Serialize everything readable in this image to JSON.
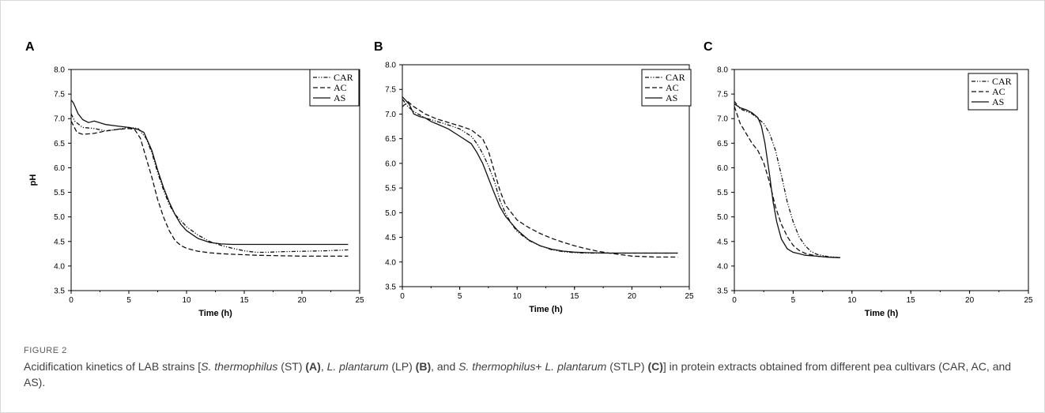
{
  "panels": [
    {
      "letter": "A"
    },
    {
      "letter": "B"
    },
    {
      "letter": "C"
    }
  ],
  "caption": {
    "label": "FIGURE 2",
    "p1": "Acidification kinetics of LAB strains [",
    "i1": "S. thermophilus",
    "p2": " (ST) ",
    "b1": "(A)",
    "p3": ", ",
    "i2": "L. plantarum",
    "p4": " (LP) ",
    "b2": "(B)",
    "p5": ", and ",
    "i3": "S. thermophilus",
    "p6": "+ ",
    "i4": "L. plantarum",
    "p7": " (STLP) ",
    "b3": "(C)",
    "p8": "] in protein extracts obtained from different pea cultivars (CAR, AC, and AS)."
  },
  "chart_data": [
    {
      "panel": "A",
      "type": "line",
      "xlabel": "Time (h)",
      "ylabel": "pH",
      "xlim": [
        0,
        25
      ],
      "ylim": [
        3.5,
        8.0
      ],
      "xticks": [
        0,
        5,
        10,
        15,
        20,
        25
      ],
      "yticks": [
        "3.5",
        "4.0",
        "4.5",
        "5.0",
        "5.5",
        "6.0",
        "6.5",
        "7.0",
        "7.5",
        "8.0"
      ],
      "legend_position": "top-right",
      "series": [
        {
          "name": "CAR",
          "dash": "dashdotdot",
          "x": [
            0,
            0.3,
            1,
            2,
            3,
            4,
            5,
            5.8,
            6.5,
            7,
            7.5,
            8,
            8.5,
            9,
            10,
            11,
            12,
            13,
            14,
            15,
            16,
            17,
            18,
            20,
            22,
            24
          ],
          "y": [
            7.1,
            6.95,
            6.82,
            6.8,
            6.75,
            6.78,
            6.82,
            6.8,
            6.6,
            6.3,
            5.9,
            5.55,
            5.25,
            5.05,
            4.8,
            4.63,
            4.5,
            4.42,
            4.36,
            4.31,
            4.28,
            4.28,
            4.29,
            4.3,
            4.31,
            4.33
          ]
        },
        {
          "name": "AC",
          "dash": "dashed",
          "x": [
            0,
            0.5,
            1,
            2,
            3,
            4,
            5,
            5.5,
            6,
            6.5,
            7,
            7.5,
            8,
            8.5,
            9,
            9.5,
            10,
            11,
            12,
            13,
            14,
            15,
            16,
            18,
            20,
            22,
            24
          ],
          "y": [
            6.95,
            6.72,
            6.68,
            6.7,
            6.75,
            6.78,
            6.8,
            6.78,
            6.6,
            6.2,
            5.8,
            5.35,
            5.0,
            4.72,
            4.52,
            4.42,
            4.36,
            4.3,
            4.27,
            4.25,
            4.24,
            4.23,
            4.22,
            4.21,
            4.2,
            4.2,
            4.2
          ]
        },
        {
          "name": "AS",
          "dash": "solid",
          "x": [
            0,
            0.2,
            0.6,
            1,
            1.5,
            2,
            3,
            4,
            5,
            5.8,
            6.3,
            7,
            7.5,
            8,
            8.5,
            9,
            9.5,
            10,
            11,
            12,
            13,
            14,
            16,
            18,
            20,
            22,
            24
          ],
          "y": [
            7.38,
            7.32,
            7.1,
            6.98,
            6.92,
            6.95,
            6.88,
            6.85,
            6.82,
            6.78,
            6.72,
            6.35,
            5.95,
            5.6,
            5.3,
            5.05,
            4.85,
            4.72,
            4.56,
            4.48,
            4.45,
            4.44,
            4.44,
            4.44,
            4.44,
            4.44,
            4.44
          ]
        }
      ]
    },
    {
      "panel": "B",
      "type": "line",
      "xlabel": "Time (h)",
      "ylabel": "",
      "xlim": [
        0,
        25
      ],
      "ylim": [
        3.5,
        8.0
      ],
      "xticks": [
        0,
        5,
        10,
        15,
        20,
        25
      ],
      "yticks": [
        "3.5",
        "4.0",
        "4.5",
        "5.0",
        "5.5",
        "6.0",
        "6.5",
        "7.0",
        "7.5",
        "8.0"
      ],
      "legend_position": "top-right",
      "series": [
        {
          "name": "CAR",
          "dash": "dashdotdot",
          "x": [
            0,
            0.5,
            1,
            2,
            3,
            4,
            5,
            6,
            6.5,
            7,
            7.5,
            8,
            8.5,
            9,
            9.5,
            10,
            11,
            12,
            13,
            14,
            15,
            16,
            18,
            20,
            22,
            24
          ],
          "y": [
            7.3,
            7.15,
            7.05,
            6.92,
            6.85,
            6.78,
            6.7,
            6.55,
            6.4,
            6.2,
            5.95,
            5.65,
            5.25,
            4.98,
            4.78,
            4.62,
            4.44,
            4.33,
            4.25,
            4.21,
            4.19,
            4.18,
            4.18,
            4.18,
            4.18,
            4.18
          ]
        },
        {
          "name": "AC",
          "dash": "dashed",
          "x": [
            0,
            0.5,
            1,
            2,
            3,
            4,
            5,
            6,
            7,
            7.5,
            8,
            8.5,
            9,
            10,
            11,
            12,
            13,
            14,
            15,
            16,
            17,
            18,
            19,
            20,
            22,
            24
          ],
          "y": [
            7.15,
            7.25,
            7.15,
            7.0,
            6.9,
            6.83,
            6.76,
            6.68,
            6.5,
            6.25,
            5.85,
            5.45,
            5.15,
            4.85,
            4.7,
            4.58,
            4.48,
            4.4,
            4.33,
            4.27,
            4.22,
            4.18,
            4.15,
            4.12,
            4.1,
            4.1
          ]
        },
        {
          "name": "AS",
          "dash": "solid",
          "x": [
            0,
            0.2,
            0.6,
            1,
            1.5,
            2,
            2.5,
            3,
            4,
            5,
            6,
            6.5,
            7,
            7.5,
            8,
            8.5,
            9,
            10,
            11,
            12,
            13,
            14,
            15,
            16,
            18,
            20,
            22,
            24
          ],
          "y": [
            7.35,
            7.3,
            7.2,
            7.0,
            6.95,
            6.92,
            6.85,
            6.8,
            6.7,
            6.55,
            6.4,
            6.22,
            6.0,
            5.7,
            5.4,
            5.12,
            4.92,
            4.65,
            4.45,
            4.33,
            4.26,
            4.22,
            4.2,
            4.19,
            4.18,
            4.18,
            4.18,
            4.18
          ]
        }
      ]
    },
    {
      "panel": "C",
      "type": "line",
      "xlabel": "Time (h)",
      "ylabel": "",
      "xlim": [
        0,
        25
      ],
      "ylim": [
        3.5,
        8.0
      ],
      "xticks": [
        0,
        5,
        10,
        15,
        20,
        25
      ],
      "yticks": [
        "3.5",
        "4.0",
        "4.5",
        "5.0",
        "5.5",
        "6.0",
        "6.5",
        "7.0",
        "7.5",
        "8.0"
      ],
      "legend_position": "top-right",
      "series": [
        {
          "name": "CAR",
          "dash": "dashdotdot",
          "x": [
            0,
            0.5,
            1,
            1.5,
            2,
            2.5,
            3,
            3.5,
            4,
            4.5,
            5,
            5.5,
            6,
            6.5,
            7,
            8,
            9
          ],
          "y": [
            7.35,
            7.2,
            7.15,
            7.1,
            7.0,
            6.9,
            6.7,
            6.35,
            5.85,
            5.3,
            4.9,
            4.6,
            4.42,
            4.3,
            4.24,
            4.19,
            4.17
          ]
        },
        {
          "name": "AC",
          "dash": "dashed",
          "x": [
            0,
            0.5,
            1,
            1.5,
            2,
            2.5,
            3,
            3.5,
            4,
            4.5,
            5,
            5.5,
            6,
            7,
            8,
            9
          ],
          "y": [
            7.25,
            6.9,
            6.7,
            6.5,
            6.35,
            6.1,
            5.7,
            5.2,
            4.85,
            4.6,
            4.42,
            4.32,
            4.26,
            4.2,
            4.18,
            4.17
          ]
        },
        {
          "name": "AS",
          "dash": "solid",
          "x": [
            0,
            0.5,
            1,
            1.5,
            2,
            2.3,
            2.6,
            3,
            3.3,
            3.6,
            4,
            4.5,
            5,
            5.5,
            6,
            7,
            8,
            9
          ],
          "y": [
            7.3,
            7.22,
            7.18,
            7.12,
            7.02,
            6.85,
            6.5,
            5.85,
            5.3,
            4.9,
            4.55,
            4.35,
            4.28,
            4.25,
            4.22,
            4.2,
            4.18,
            4.17
          ]
        }
      ]
    }
  ]
}
